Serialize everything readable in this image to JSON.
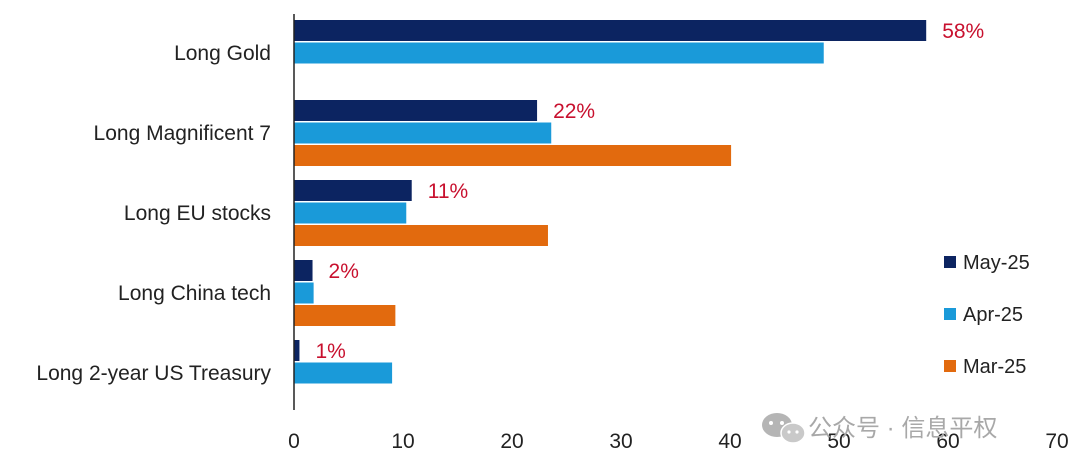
{
  "chart_data": {
    "type": "bar",
    "orientation": "horizontal",
    "categories": [
      "Long Gold",
      "Long Magnificent 7",
      "Long EU stocks",
      "Long China tech",
      "Long 2-year US Treasury"
    ],
    "series": [
      {
        "name": "May-25",
        "color": "#0c2461",
        "values": [
          58,
          22.3,
          10.8,
          1.7,
          0.5
        ]
      },
      {
        "name": "Apr-25",
        "color": "#1a9ad9",
        "values": [
          48.6,
          23.6,
          10.3,
          1.8,
          9
        ]
      },
      {
        "name": "Mar-25",
        "color": "#e26a0e",
        "values": [
          null,
          40.1,
          23.3,
          9.3,
          null
        ]
      }
    ],
    "data_labels": [
      "58%",
      "22%",
      "11%",
      "2%",
      "1%"
    ],
    "data_label_color": "#c8102e",
    "xlim": [
      0,
      70
    ],
    "xticks": [
      0,
      10,
      20,
      30,
      40,
      50,
      60,
      70
    ],
    "legend_position": "right",
    "grid": false,
    "title": "",
    "xlabel": "",
    "ylabel": ""
  },
  "watermark": {
    "text": "公众号 · 信息平权",
    "icon": "wechat-icon"
  }
}
